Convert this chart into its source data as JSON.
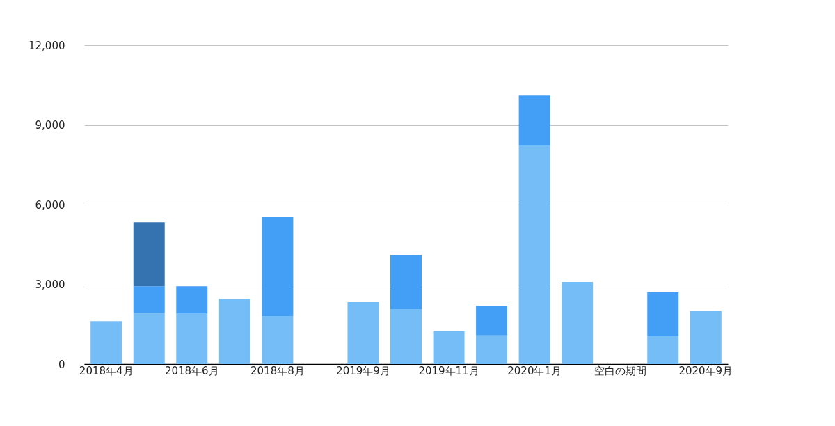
{
  "chart_data": {
    "type": "bar",
    "stacked": true,
    "categories": [
      "2018年4月",
      null,
      "2018年6月",
      null,
      "2018年8月",
      null,
      "2019年9月",
      null,
      "2019年11月",
      null,
      "2020年1月",
      null,
      "空白の期間",
      null,
      "2020年9月"
    ],
    "series": [
      {
        "color": "#74bdf7",
        "values": [
          1620,
          1940,
          1910,
          2460,
          1810,
          null,
          2330,
          2070,
          1230,
          1080,
          8230,
          3090,
          null,
          1050,
          1990
        ]
      },
      {
        "color": "#439ef5",
        "values": [
          null,
          990,
          1020,
          null,
          3720,
          null,
          null,
          2040,
          null,
          1120,
          1880,
          null,
          null,
          1650,
          null
        ]
      },
      {
        "color": "#3572b0",
        "values": [
          null,
          2410,
          null,
          null,
          null,
          null,
          null,
          null,
          null,
          null,
          null,
          null,
          null,
          null,
          null
        ]
      }
    ],
    "ylim": [
      0,
      12000
    ],
    "yticks": [
      {
        "value": 0,
        "label": "0"
      },
      {
        "value": 3000,
        "label": "3,000"
      },
      {
        "value": 6000,
        "label": "6,000"
      },
      {
        "value": 9000,
        "label": "9,000"
      },
      {
        "value": 12000,
        "label": "12,000"
      }
    ],
    "grid": "y"
  }
}
